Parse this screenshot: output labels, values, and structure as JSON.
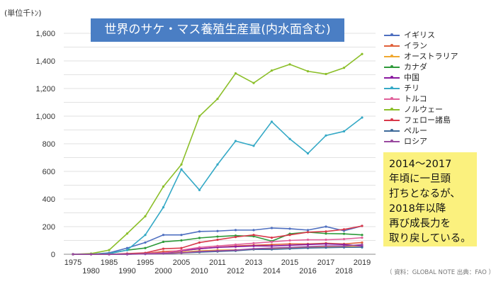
{
  "chart_data": {
    "type": "line",
    "title": "世界のサケ・マス養殖生産量(内水面含む)",
    "ylabel": "(単位千ﾄﾝ)",
    "ylim": [
      0,
      1600
    ],
    "yticks": [
      "0",
      "200",
      "400",
      "600",
      "800",
      "1,000",
      "1,200",
      "1,400",
      "1,600"
    ],
    "grid": true,
    "legend_position": "right",
    "categories": [
      "1975",
      "1980",
      "1985",
      "1990",
      "1995",
      "2000",
      "2005",
      "2010",
      "2011",
      "2012",
      "2013",
      "2014",
      "2015",
      "2016",
      "2017",
      "2018",
      "2019"
    ],
    "series": [
      {
        "name": "イギリス",
        "color": "#4e6fc0",
        "values": [
          0,
          0,
          10,
          45,
          85,
          140,
          140,
          165,
          168,
          175,
          175,
          190,
          185,
          175,
          200,
          170,
          205
        ]
      },
      {
        "name": "イラン",
        "color": "#e0603a",
        "values": [
          0,
          0,
          0,
          0,
          5,
          20,
          25,
          40,
          50,
          60,
          65,
          70,
          75,
          75,
          80,
          75,
          85
        ]
      },
      {
        "name": "オーストラリア",
        "color": "#f0a830",
        "values": [
          0,
          0,
          0,
          2,
          5,
          10,
          15,
          25,
          30,
          32,
          35,
          40,
          42,
          50,
          55,
          58,
          60
        ]
      },
      {
        "name": "カナダ",
        "color": "#2e9a3a",
        "values": [
          0,
          0,
          5,
          30,
          45,
          90,
          100,
          118,
          128,
          135,
          130,
          95,
          148,
          160,
          150,
          148,
          140
        ]
      },
      {
        "name": "中国",
        "color": "#8a1aa0",
        "values": [
          0,
          0,
          0,
          0,
          5,
          10,
          25,
          40,
          50,
          55,
          60,
          60,
          65,
          70,
          75,
          70,
          60
        ]
      },
      {
        "name": "チリ",
        "color": "#35a9c6",
        "values": [
          0,
          0,
          5,
          30,
          140,
          340,
          615,
          465,
          650,
          820,
          785,
          960,
          835,
          730,
          860,
          890,
          990
        ]
      },
      {
        "name": "トルコ",
        "color": "#e0609a",
        "values": [
          0,
          0,
          0,
          0,
          5,
          10,
          30,
          50,
          60,
          70,
          80,
          90,
          100,
          105,
          105,
          110,
          120
        ]
      },
      {
        "name": "ノルウェー",
        "color": "#8cbf2a",
        "values": [
          0,
          5,
          30,
          150,
          275,
          490,
          650,
          1000,
          1125,
          1310,
          1240,
          1330,
          1375,
          1325,
          1305,
          1350,
          1450
        ]
      },
      {
        "name": "フェロー諸島",
        "color": "#d8384a",
        "values": [
          0,
          0,
          0,
          5,
          10,
          40,
          45,
          85,
          105,
          125,
          140,
          120,
          140,
          160,
          165,
          180,
          205
        ]
      },
      {
        "name": "ペルー",
        "color": "#3e6a9a",
        "values": [
          0,
          0,
          0,
          0,
          2,
          5,
          10,
          15,
          20,
          25,
          35,
          35,
          40,
          45,
          48,
          50,
          50
        ]
      },
      {
        "name": "ロシア",
        "color": "#9a4aa0",
        "values": [
          0,
          0,
          0,
          0,
          2,
          5,
          10,
          20,
          25,
          30,
          40,
          45,
          50,
          55,
          60,
          60,
          70
        ]
      }
    ]
  },
  "annotation": "2014～2017\n年頃に一旦頭\n打ちとなるが、\n2018年以降\n再び成長力を\n取り戻している。",
  "source": "（ 資料：GLOBAL NOTE  出典：FAO ）"
}
